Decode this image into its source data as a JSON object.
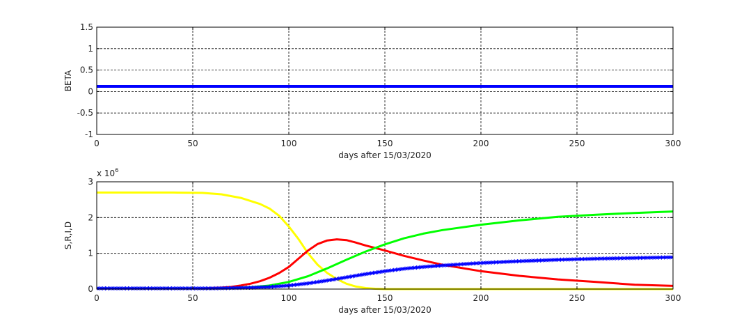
{
  "chart_data": [
    {
      "type": "line",
      "ylabel": "BETA",
      "xlabel": "days after 15/03/2020",
      "xlim": [
        0,
        300
      ],
      "ylim": [
        -1,
        1.5
      ],
      "xticks": [
        "0",
        "50",
        "100",
        "150",
        "200",
        "250",
        "300"
      ],
      "yticks": [
        "-1",
        "-0.5",
        "0",
        "0.5",
        "1",
        "1.5"
      ],
      "grid": true,
      "series": [
        {
          "color": "#0000ff",
          "x": [
            0,
            300
          ],
          "y": [
            0.12,
            0.12
          ]
        }
      ]
    },
    {
      "type": "line",
      "ylabel": "S,R,I,D",
      "xlabel": "days after 15/03/2020",
      "y_multiplier": "x 10",
      "y_multiplier_exp": "6",
      "xlim": [
        0,
        300
      ],
      "ylim": [
        0,
        3
      ],
      "xticks": [
        "0",
        "50",
        "100",
        "150",
        "200",
        "250",
        "300"
      ],
      "yticks": [
        "0",
        "1",
        "2",
        "3"
      ],
      "grid": true,
      "series": [
        {
          "color": "#ffff00",
          "x": [
            0,
            40,
            55,
            65,
            75,
            85,
            90,
            95,
            100,
            105,
            110,
            115,
            120,
            125,
            130,
            135,
            140,
            145,
            150,
            160,
            200,
            300
          ],
          "y": [
            2.7,
            2.7,
            2.69,
            2.65,
            2.55,
            2.38,
            2.25,
            2.05,
            1.75,
            1.4,
            1.0,
            0.68,
            0.45,
            0.28,
            0.15,
            0.07,
            0.03,
            0.01,
            0.0,
            0.0,
            0.0,
            0.0
          ]
        },
        {
          "color": "#ff0000",
          "x": [
            0,
            55,
            65,
            70,
            75,
            80,
            85,
            90,
            95,
            100,
            105,
            110,
            115,
            120,
            125,
            130,
            135,
            140,
            150,
            160,
            170,
            180,
            200,
            220,
            240,
            260,
            280,
            300
          ],
          "y": [
            0.02,
            0.02,
            0.04,
            0.06,
            0.1,
            0.15,
            0.22,
            0.32,
            0.45,
            0.62,
            0.85,
            1.08,
            1.26,
            1.36,
            1.39,
            1.37,
            1.3,
            1.22,
            1.08,
            0.93,
            0.8,
            0.68,
            0.5,
            0.37,
            0.27,
            0.2,
            0.12,
            0.09
          ]
        },
        {
          "color": "#00ff00",
          "x": [
            0,
            60,
            70,
            80,
            90,
            100,
            110,
            120,
            130,
            140,
            150,
            160,
            170,
            180,
            200,
            220,
            240,
            260,
            280,
            300
          ],
          "y": [
            0.02,
            0.02,
            0.03,
            0.05,
            0.1,
            0.2,
            0.36,
            0.58,
            0.82,
            1.05,
            1.25,
            1.42,
            1.55,
            1.65,
            1.8,
            1.92,
            2.02,
            2.08,
            2.13,
            2.17
          ]
        },
        {
          "color": "#0000ff",
          "markers": "*",
          "x": [
            0,
            60,
            70,
            80,
            90,
            100,
            110,
            120,
            130,
            140,
            150,
            160,
            170,
            180,
            200,
            220,
            240,
            260,
            280,
            300
          ],
          "y": [
            0.02,
            0.02,
            0.03,
            0.04,
            0.06,
            0.1,
            0.16,
            0.24,
            0.33,
            0.42,
            0.5,
            0.57,
            0.62,
            0.66,
            0.73,
            0.78,
            0.82,
            0.85,
            0.87,
            0.89
          ]
        }
      ]
    }
  ]
}
